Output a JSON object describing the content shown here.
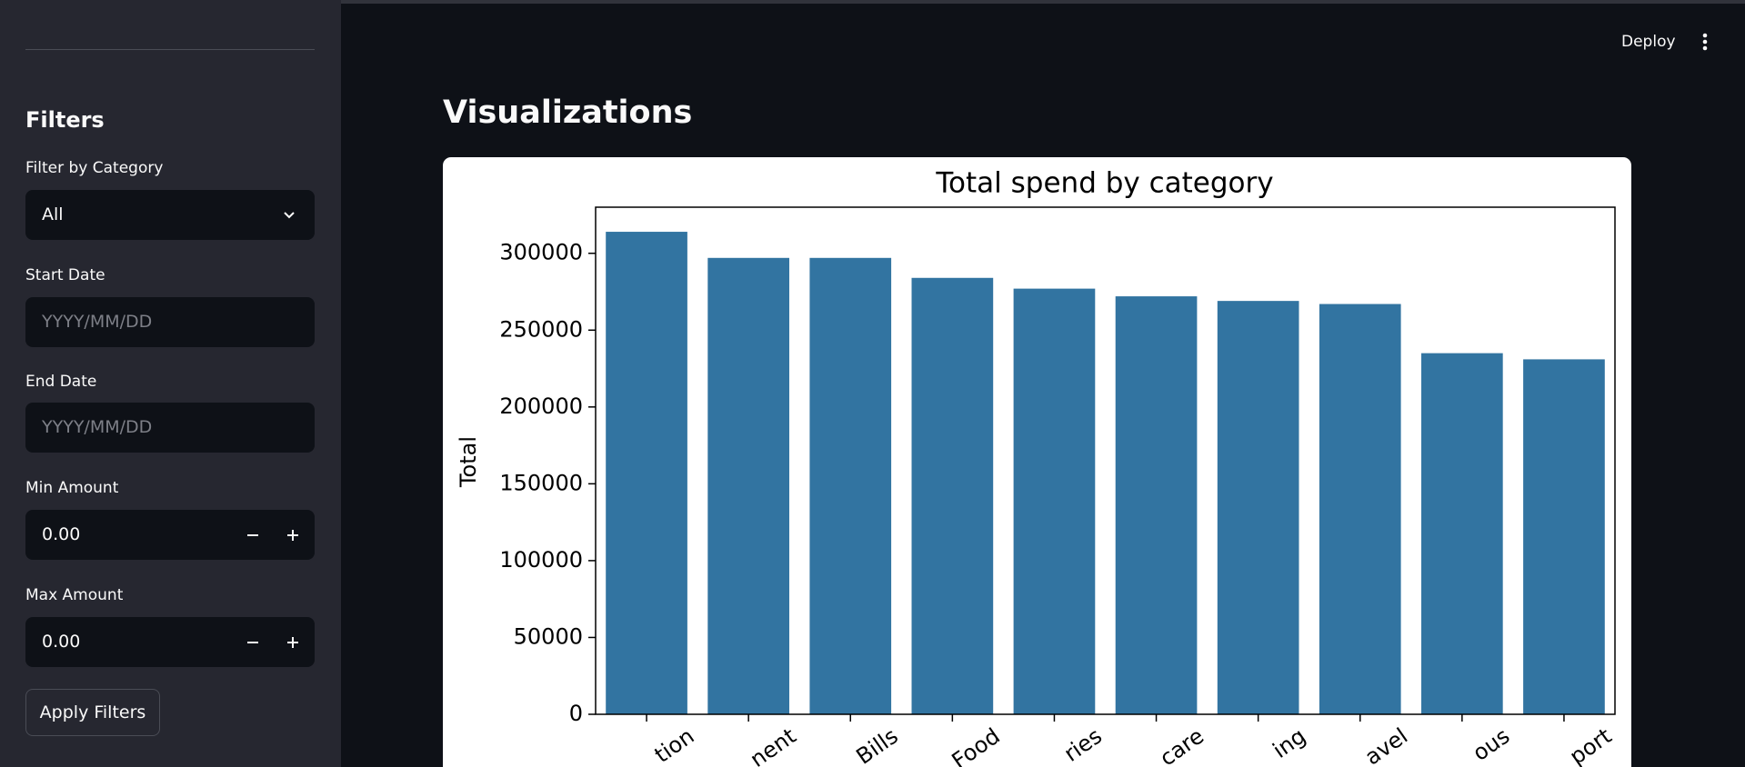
{
  "sidebar": {
    "title": "Filters",
    "fields": [
      {
        "label": "Filter by Category",
        "value": "All"
      },
      {
        "label": "Start Date",
        "placeholder": "YYYY/MM/DD"
      },
      {
        "label": "End Date",
        "placeholder": "YYYY/MM/DD"
      },
      {
        "label": "Min Amount",
        "value": "0.00"
      },
      {
        "label": "Max Amount",
        "value": "0.00"
      }
    ],
    "button": "Apply Filters"
  },
  "header": {
    "deploy": "Deploy"
  },
  "main": {
    "title": "Visualizations"
  },
  "chart_data": {
    "type": "bar",
    "title": "Total spend by category",
    "y_label": "Total",
    "categories": [
      "tion",
      "nent",
      "Bills",
      "Food",
      "ries",
      "care",
      "ing",
      "avel",
      "ous",
      "port"
    ],
    "values": [
      314000,
      297000,
      297000,
      284000,
      277000,
      272000,
      269000,
      267000,
      235000,
      231000
    ],
    "color": "#3274a1",
    "ylim": [
      0,
      330000
    ],
    "yticks": [
      0,
      50000,
      100000,
      150000,
      200000,
      250000,
      300000
    ]
  }
}
